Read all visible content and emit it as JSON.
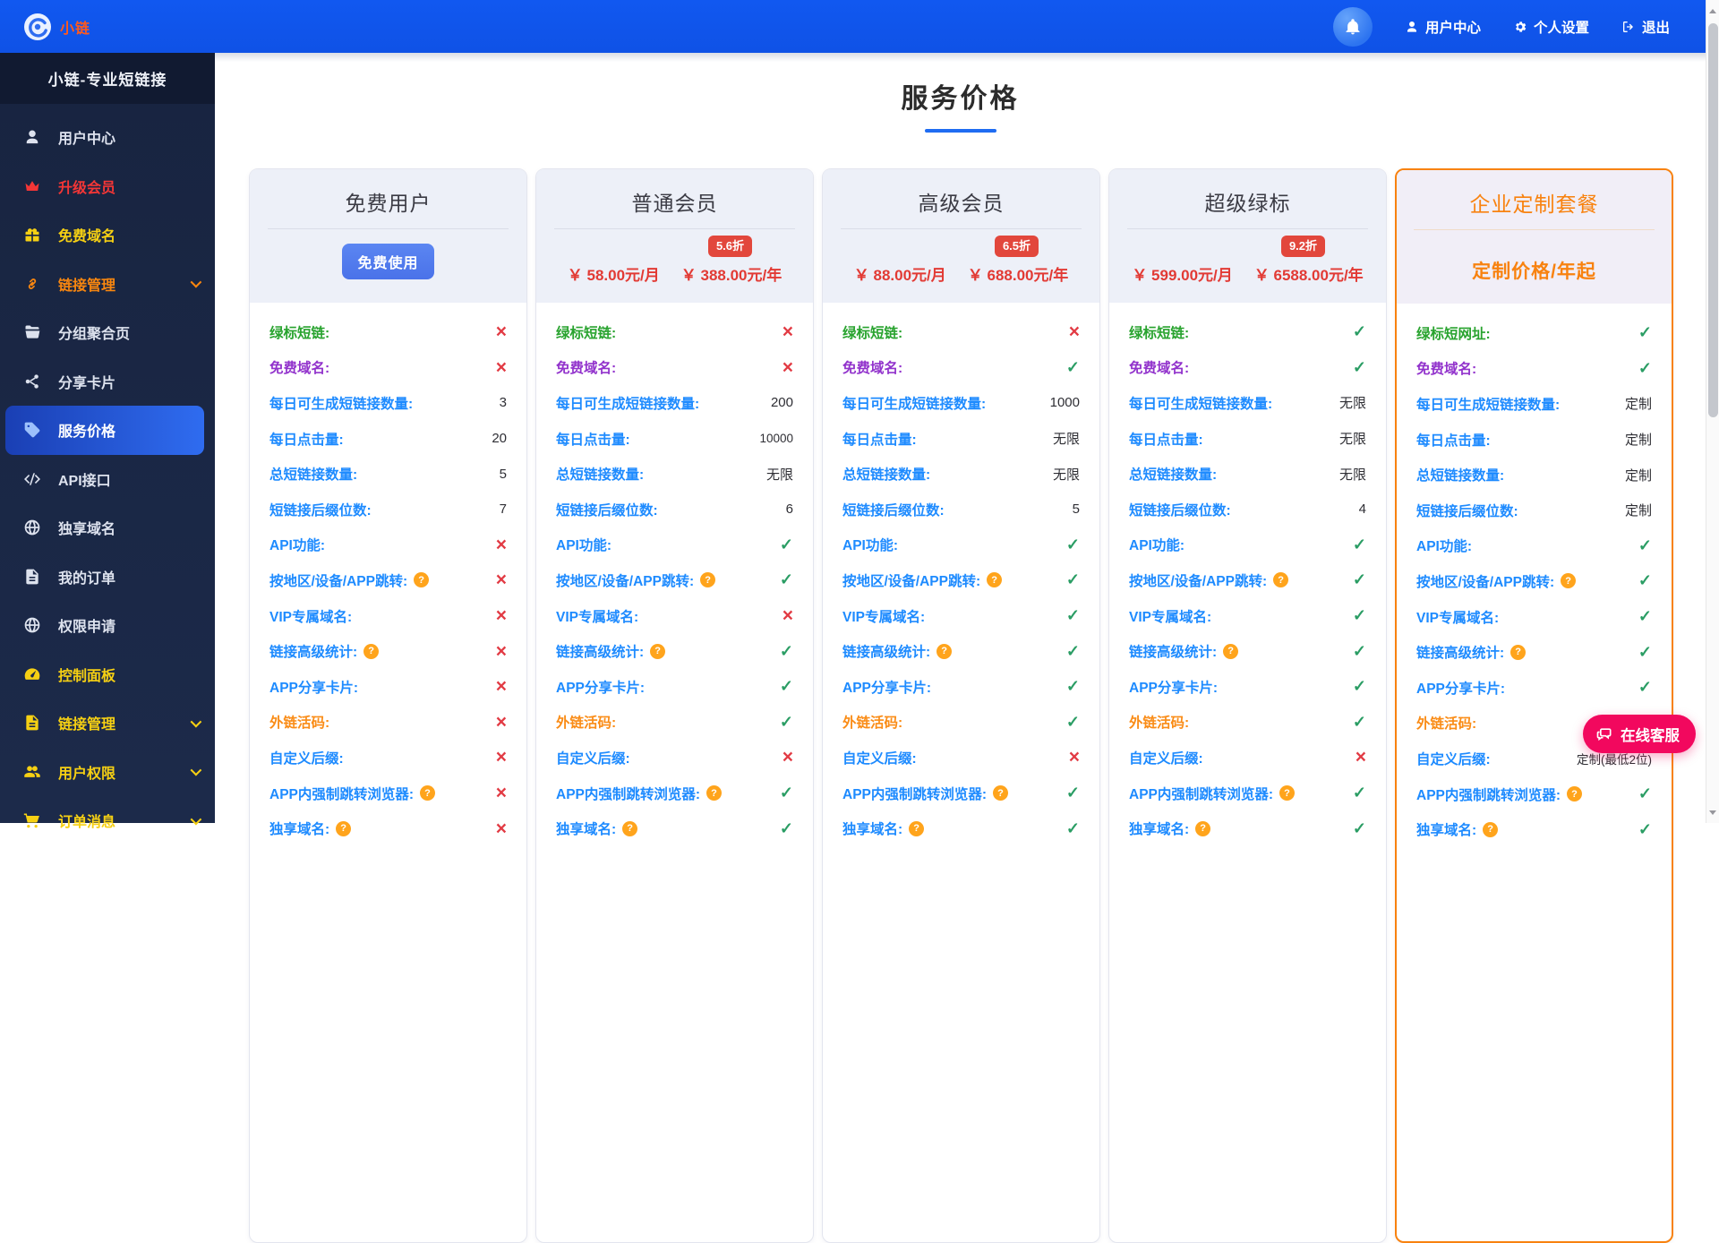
{
  "colors": {
    "topbar_blue": "#1157ee",
    "sidebar_navy": "#1a2642",
    "active_item_blue": "#2f6cf0",
    "accent_blue": "#1e8bff",
    "price_red": "#e23a34",
    "badge_red": "#e2473c",
    "highlight_orange": "#f8820f",
    "menu_yellow": "#f6d013",
    "support_pink": "#f2085e",
    "check_green": "#2a9d64",
    "cross_red": "#e23b44"
  },
  "topbar": {
    "logo_text": "小链",
    "nav": [
      {
        "id": "user-center",
        "icon": "user",
        "label": "用户中心"
      },
      {
        "id": "personal-settings",
        "icon": "gear",
        "label": "个人设置"
      },
      {
        "id": "logout",
        "icon": "logout",
        "label": "退出"
      }
    ]
  },
  "sidebar": {
    "title": "小链-专业短链接",
    "items": [
      {
        "id": "user-center",
        "icon": "user",
        "label": "用户中心",
        "color": "white"
      },
      {
        "id": "upgrade-member",
        "icon": "crown",
        "label": "升级会员",
        "color": "red"
      },
      {
        "id": "free-domain",
        "icon": "gift",
        "label": "免费域名",
        "color": "yellow"
      },
      {
        "id": "link-management",
        "icon": "link",
        "label": "链接管理",
        "color": "orange",
        "expandable": true
      },
      {
        "id": "group-aggregation",
        "icon": "folder",
        "label": "分组聚合页",
        "color": "white"
      },
      {
        "id": "share-card",
        "icon": "share",
        "label": "分享卡片",
        "color": "white"
      },
      {
        "id": "service-price",
        "icon": "tag",
        "label": "服务价格",
        "color": "white",
        "active": true
      },
      {
        "id": "api",
        "icon": "code",
        "label": "API接口",
        "color": "white"
      },
      {
        "id": "exclusive-domain",
        "icon": "globe",
        "label": "独享域名",
        "color": "white"
      },
      {
        "id": "my-orders",
        "icon": "document",
        "label": "我的订单",
        "color": "white"
      },
      {
        "id": "permission-apply",
        "icon": "globe",
        "label": "权限申请",
        "color": "white"
      },
      {
        "id": "control-panel",
        "icon": "gauge",
        "label": "控制面板",
        "color": "yellow"
      },
      {
        "id": "link-management-admin",
        "icon": "document",
        "label": "链接管理",
        "color": "yellow",
        "expandable": true
      },
      {
        "id": "user-permission",
        "icon": "users",
        "label": "用户权限",
        "color": "yellow",
        "expandable": true
      },
      {
        "id": "order-message",
        "icon": "cart",
        "label": "订单消息",
        "color": "yellow",
        "expandable": true
      }
    ]
  },
  "page": {
    "title": "服务价格"
  },
  "pricing": {
    "feature_labels": [
      {
        "text": "绿标短链:",
        "color": "green"
      },
      {
        "text": "免费域名:",
        "color": "purple"
      },
      {
        "text": "每日可生成短链接数量:",
        "color": "blue"
      },
      {
        "text": "每日点击量:",
        "color": "blue"
      },
      {
        "text": "总短链接数量:",
        "color": "blue"
      },
      {
        "text": "短链接后缀位数:",
        "color": "blue"
      },
      {
        "text": "API功能:",
        "color": "blue"
      },
      {
        "text": "按地区/设备/APP跳转:",
        "color": "blue",
        "help": true
      },
      {
        "text": "VIP专属域名:",
        "color": "blue"
      },
      {
        "text": "链接高级统计:",
        "color": "blue",
        "help": true
      },
      {
        "text": "APP分享卡片:",
        "color": "blue"
      },
      {
        "text": "外链活码:",
        "color": "orange"
      },
      {
        "text": "自定义后缀:",
        "color": "blue"
      },
      {
        "text": "APP内强制跳转浏览器:",
        "color": "blue",
        "help": true
      },
      {
        "text": "独享域名:",
        "color": "blue",
        "help": true
      }
    ],
    "plans": [
      {
        "id": "free",
        "name": "免费用户",
        "action_button": "免费使用",
        "values": [
          "x",
          "x",
          "3",
          "20",
          "5",
          "7",
          "x",
          "x",
          "x",
          "x",
          "x",
          "x",
          "x",
          "x",
          "x"
        ]
      },
      {
        "id": "basic",
        "name": "普通会员",
        "discount_badge": "5.6折",
        "price_monthly": "￥ 58.00元/月",
        "price_yearly": "￥ 388.00元/年",
        "values": [
          "x",
          "x",
          "200",
          "10000",
          "无限",
          "6",
          "check",
          "check",
          "x",
          "check",
          "check",
          "check",
          "x",
          "check",
          "check"
        ]
      },
      {
        "id": "premium",
        "name": "高级会员",
        "discount_badge": "6.5折",
        "price_monthly": "￥ 88.00元/月",
        "price_yearly": "￥ 688.00元/年",
        "values": [
          "x",
          "check",
          "1000",
          "无限",
          "无限",
          "5",
          "check",
          "check",
          "check",
          "check",
          "check",
          "check",
          "x",
          "check",
          "check"
        ]
      },
      {
        "id": "super-green",
        "name": "超级绿标",
        "discount_badge": "9.2折",
        "price_monthly": "￥ 599.00元/月",
        "price_yearly": "￥ 6588.00元/年",
        "values": [
          "check",
          "check",
          "无限",
          "无限",
          "无限",
          "4",
          "check",
          "check",
          "check",
          "check",
          "check",
          "check",
          "x",
          "check",
          "check"
        ]
      },
      {
        "id": "enterprise",
        "name": "企业定制套餐",
        "custom_price_text": "定制价格/年起",
        "highlighted": true,
        "label_overrides": {
          "0": "绿标短网址:"
        },
        "values": [
          "check",
          "check",
          "定制",
          "定制",
          "定制",
          "定制",
          "check",
          "check",
          "check",
          "check",
          "check",
          "check",
          "定制(最低2位)",
          "check",
          "check"
        ]
      }
    ]
  },
  "support_button": {
    "label": "在线客服"
  }
}
